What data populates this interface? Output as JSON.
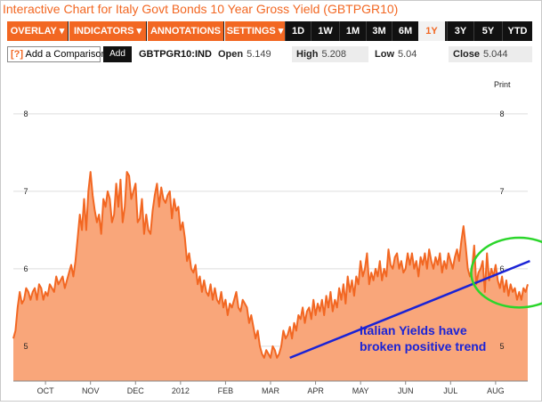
{
  "title": "Interactive Chart for Italy Govt Bonds 10 Year Gross Yield (GBTPGR10)",
  "toolbar": {
    "menus": [
      "OVERLAY ▾",
      "INDICATORS ▾",
      "ANNOTATIONS ▾",
      "SETTINGS ▾"
    ],
    "ranges": [
      "1D",
      "1W",
      "1M",
      "3M",
      "6M",
      "1Y",
      "3Y",
      "5Y",
      "YTD"
    ],
    "active_range": "1Y"
  },
  "compare": {
    "icon": "[?]",
    "label": "Add a Comparison",
    "add_label": "Add"
  },
  "ticker": "GBTPGR10:IND",
  "stats": {
    "open_label": "Open",
    "open_value": "5.149",
    "high_label": "High",
    "high_value": "5.208",
    "low_label": "Low",
    "low_value": "5.04",
    "close_label": "Close",
    "close_value": "5.044"
  },
  "print_label": "Print",
  "colors": {
    "accent": "#f26722",
    "area_fill": "#f9a67a",
    "line": "#f26722",
    "trend": "#1a23d6",
    "circle": "#2bd62b",
    "annotation_text": "#1a23d6"
  },
  "chart_data": {
    "type": "area",
    "ylim": [
      4.55,
      8.55
    ],
    "yticks": [
      5,
      6,
      7,
      8
    ],
    "xlabels": [
      "OCT",
      "NOV",
      "DEC",
      "2012",
      "FEB",
      "MAR",
      "APR",
      "MAY",
      "JUN",
      "JUL",
      "AUG"
    ],
    "x_tick_index": [
      15,
      36,
      57,
      78,
      99,
      120,
      141,
      162,
      183,
      204,
      225
    ],
    "values": [
      5.1,
      5.2,
      5.5,
      5.7,
      5.55,
      5.6,
      5.75,
      5.7,
      5.6,
      5.7,
      5.75,
      5.6,
      5.8,
      5.75,
      5.6,
      5.7,
      5.65,
      5.8,
      5.75,
      5.7,
      5.9,
      5.8,
      5.85,
      5.9,
      5.75,
      5.85,
      5.95,
      6.05,
      5.9,
      6.1,
      6.4,
      6.7,
      6.5,
      6.9,
      6.5,
      7.0,
      7.25,
      6.95,
      6.75,
      6.6,
      6.7,
      6.45,
      6.9,
      6.8,
      7.0,
      6.9,
      6.6,
      6.7,
      7.1,
      6.8,
      7.15,
      6.6,
      6.8,
      7.25,
      7.2,
      6.9,
      7.0,
      7.1,
      6.6,
      6.65,
      6.9,
      6.45,
      6.7,
      6.5,
      6.45,
      6.75,
      6.95,
      7.1,
      6.8,
      7.05,
      6.9,
      6.85,
      6.95,
      7.0,
      6.65,
      6.9,
      6.75,
      6.8,
      6.5,
      6.6,
      6.4,
      6.1,
      6.2,
      6.0,
      5.95,
      6.05,
      5.8,
      5.9,
      5.7,
      5.85,
      5.7,
      5.65,
      5.8,
      5.6,
      5.75,
      5.6,
      5.55,
      5.7,
      5.5,
      5.6,
      5.4,
      5.55,
      5.5,
      5.6,
      5.7,
      5.5,
      5.45,
      5.6,
      5.55,
      5.5,
      5.3,
      5.4,
      5.25,
      5.1,
      5.2,
      5.0,
      4.9,
      4.85,
      4.95,
      4.9,
      4.85,
      5.0,
      4.95,
      4.85,
      4.9,
      5.0,
      5.2,
      5.1,
      5.15,
      5.25,
      5.1,
      5.3,
      5.2,
      5.4,
      5.35,
      5.5,
      5.3,
      5.45,
      5.5,
      5.35,
      5.6,
      5.4,
      5.55,
      5.45,
      5.6,
      5.4,
      5.65,
      5.5,
      5.7,
      5.45,
      5.6,
      5.5,
      5.75,
      5.6,
      5.8,
      5.55,
      5.9,
      5.7,
      5.85,
      5.65,
      5.9,
      5.8,
      6.1,
      5.9,
      6.0,
      6.2,
      5.8,
      5.95,
      5.85,
      6.0,
      5.9,
      6.1,
      5.85,
      6.0,
      5.9,
      6.25,
      6.05,
      6.0,
      6.15,
      6.2,
      6.0,
      6.1,
      5.95,
      6.0,
      6.2,
      6.05,
      6.2,
      6.0,
      6.1,
      5.9,
      6.15,
      6.05,
      6.2,
      6.0,
      6.25,
      6.1,
      6.0,
      6.15,
      6.05,
      6.2,
      5.95,
      6.1,
      6.0,
      6.2,
      6.1,
      6.0,
      6.15,
      6.25,
      6.1,
      6.35,
      6.55,
      6.3,
      6.0,
      5.9,
      6.0,
      6.3,
      5.8,
      5.95,
      6.0,
      6.1,
      5.7,
      6.2,
      5.85,
      6.0,
      5.9,
      6.05,
      5.85,
      5.75,
      5.9,
      5.7,
      5.85,
      5.65,
      5.8,
      5.7,
      5.75,
      5.6,
      5.7,
      5.6,
      5.75,
      5.7,
      5.8
    ],
    "trendline": {
      "from": [
        129,
        4.85
      ],
      "to": [
        241,
        6.1
      ]
    },
    "annotation": {
      "lines": [
        "Italian Yields have",
        "broken positive trend"
      ],
      "anchor": [
        164,
        4.7
      ]
    },
    "circle": {
      "center": [
        236,
        5.95
      ],
      "rx_points": 8,
      "ry_value": 0.45
    }
  }
}
